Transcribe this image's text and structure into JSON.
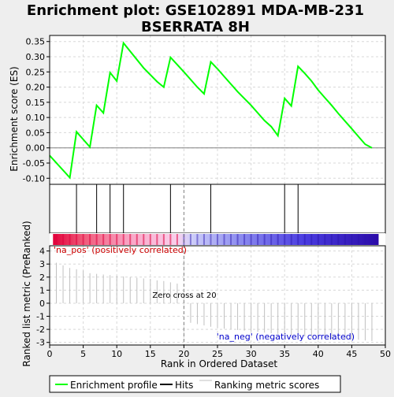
{
  "chart_data": {
    "type": "line",
    "title": "Enrichment plot: GSE102891 MDA-MB-231\nBSERRATA 8H",
    "panels": {
      "es": {
        "ylabel": "Enrichment score (ES)",
        "ylim": [
          -0.12,
          0.37
        ],
        "yticks": [
          -0.1,
          -0.05,
          0.0,
          0.05,
          0.1,
          0.15,
          0.2,
          0.25,
          0.3,
          0.35
        ],
        "ytick_labels": [
          "-0.10",
          "-0.05",
          "0.00",
          "0.05",
          "0.10",
          "0.15",
          "0.20",
          "0.25",
          "0.30",
          "0.35"
        ]
      },
      "metric": {
        "ylabel": "Ranked list metric (PreRanked)",
        "ylim": [
          -3.2,
          4.4
        ],
        "yticks": [
          -3,
          -2,
          -1,
          0,
          1,
          2,
          3,
          4
        ],
        "ytick_labels": [
          "-3",
          "-2",
          "-1",
          "0",
          "1",
          "2",
          "3",
          "4"
        ]
      }
    },
    "xlabel": "Rank in Ordered Dataset",
    "xlim": [
      0,
      50
    ],
    "xticks": [
      0,
      5,
      10,
      15,
      20,
      25,
      30,
      35,
      40,
      45,
      50
    ],
    "xtick_labels": [
      "0",
      "5",
      "10",
      "15",
      "20",
      "25",
      "30",
      "35",
      "40",
      "45",
      "50"
    ],
    "series": [
      {
        "name": "Enrichment profile",
        "color": "#00ff00",
        "x": [
          0,
          3,
          4,
          6,
          7,
          8,
          9,
          10,
          11,
          14,
          16,
          17,
          18,
          20,
          22,
          23,
          24,
          25,
          26,
          28,
          30,
          32,
          33,
          34,
          35,
          36,
          37,
          38,
          39,
          40,
          41,
          42,
          43,
          44,
          45,
          46,
          47,
          48
        ],
        "y": [
          -0.025,
          -0.098,
          0.053,
          0.003,
          0.14,
          0.115,
          0.248,
          0.22,
          0.345,
          0.263,
          0.218,
          0.2,
          0.298,
          0.25,
          0.2,
          0.178,
          0.283,
          0.26,
          0.235,
          0.185,
          0.14,
          0.09,
          0.07,
          0.04,
          0.163,
          0.138,
          0.268,
          0.245,
          0.22,
          0.19,
          0.165,
          0.14,
          0.113,
          0.088,
          0.063,
          0.037,
          0.012,
          0.0
        ]
      }
    ],
    "hits": [
      4,
      7,
      9,
      11,
      18,
      24,
      35,
      37
    ],
    "hits_label": "Hits",
    "ranking_metric": {
      "name": "Ranking metric scores",
      "color": "#c0c0c0",
      "x": [
        1,
        2,
        3,
        4,
        5,
        6,
        7,
        8,
        9,
        10,
        11,
        12,
        13,
        14,
        15,
        16,
        17,
        18,
        19,
        20,
        21,
        22,
        23,
        24,
        25,
        26,
        27,
        28,
        29,
        30,
        31,
        32,
        33,
        34,
        35,
        36,
        37,
        38,
        39,
        40,
        41,
        42,
        43,
        44,
        45,
        46,
        47,
        48
      ],
      "y": [
        3.1,
        2.9,
        2.7,
        2.6,
        2.5,
        2.3,
        2.25,
        2.2,
        2.15,
        2.1,
        2.05,
        2.0,
        1.95,
        1.9,
        1.85,
        1.75,
        1.7,
        1.6,
        1.5,
        0.02,
        -1.5,
        -1.6,
        -1.7,
        -1.8,
        -1.9,
        -1.95,
        -2.0,
        -2.05,
        -2.1,
        -2.15,
        -2.2,
        -2.25,
        -2.3,
        -2.35,
        -2.4,
        -2.45,
        -2.5,
        -2.55,
        -2.6,
        -2.65,
        -2.7,
        -2.72,
        -2.74,
        -2.76,
        -2.78,
        -2.8,
        -2.85,
        -2.9
      ]
    },
    "zero_cross": 20,
    "annotations": {
      "pos_label": "'na_pos' (positively correlated)",
      "neg_label": "'na_neg' (negatively correlated)",
      "zero_cross_label": "Zero cross at 20"
    },
    "legend": {
      "placement": "bottom",
      "items": [
        "Enrichment profile",
        "Hits",
        "Ranking metric scores"
      ]
    },
    "colors": {
      "background": "#eeeeee",
      "plot_bg": "#ffffff",
      "profile": "#00ff00",
      "hit": "#000000",
      "metric": "#c0c0c0",
      "pos_text": "#cc0000",
      "neg_text": "#0000cc",
      "grid": "#d8d8d8"
    },
    "heat_bar": {
      "start": 0.5,
      "end": 49,
      "stops": [
        {
          "x": 0.5,
          "color": "#e2003a"
        },
        {
          "x": 5,
          "color": "#f05a7a"
        },
        {
          "x": 12,
          "color": "#f9a6c6"
        },
        {
          "x": 19,
          "color": "#f9d0ec"
        },
        {
          "x": 21,
          "color": "#cfcff9"
        },
        {
          "x": 28,
          "color": "#8f8fef"
        },
        {
          "x": 38,
          "color": "#4a3ce0"
        },
        {
          "x": 49,
          "color": "#2a0aa8"
        }
      ]
    }
  }
}
